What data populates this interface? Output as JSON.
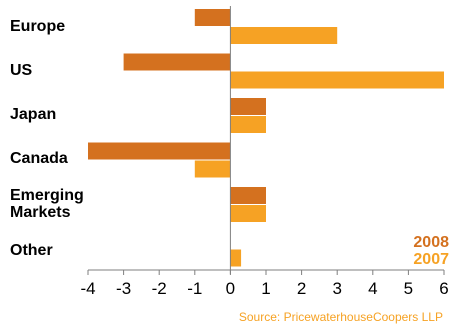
{
  "chart_data": {
    "type": "bar",
    "orientation": "horizontal",
    "categories": [
      [
        "Europe"
      ],
      [
        "US"
      ],
      [
        "Japan"
      ],
      [
        "Canada"
      ],
      [
        "Emerging",
        "Markets"
      ],
      [
        "Other"
      ]
    ],
    "series": [
      {
        "name": "2008",
        "color": "#d4711f",
        "values": [
          -1,
          -3,
          1,
          -4,
          1,
          0
        ]
      },
      {
        "name": "2007",
        "color": "#f6a224",
        "values": [
          3,
          6,
          1,
          -1,
          1,
          0.3
        ]
      }
    ],
    "xlim": [
      -4,
      6
    ],
    "xticks": [
      "-4",
      "-3",
      "-2",
      "-1",
      "0",
      "1",
      "2",
      "3",
      "4",
      "5",
      "6"
    ],
    "legend_position": "bottom-right",
    "source": "Source: PricewaterhouseCoopers LLP",
    "grid": false
  }
}
